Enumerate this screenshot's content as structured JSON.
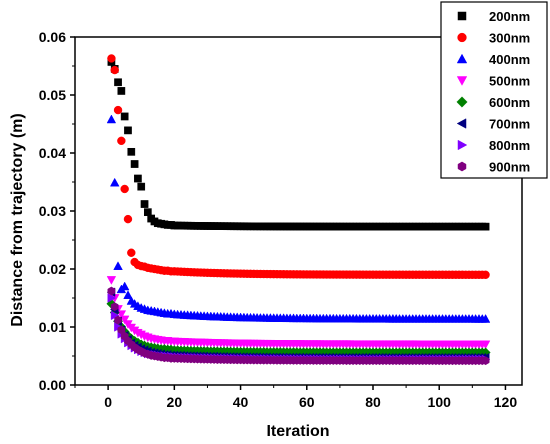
{
  "chart_data": {
    "type": "scatter",
    "title": "",
    "xlabel": "Iteration",
    "ylabel": "Distance from trajectory (m)",
    "xlim": [
      -10,
      125
    ],
    "ylim": [
      0,
      0.06
    ],
    "x_ticks": [
      0,
      20,
      40,
      60,
      80,
      100,
      120
    ],
    "y_ticks": [
      0.0,
      0.01,
      0.02,
      0.03,
      0.04,
      0.05,
      0.06
    ],
    "x_tick_labels": [
      "0",
      "20",
      "40",
      "60",
      "80",
      "100",
      "120"
    ],
    "y_tick_labels": [
      "0.00",
      "0.01",
      "0.02",
      "0.03",
      "0.04",
      "0.05",
      "0.06"
    ],
    "grid": false,
    "legend_position": "top-right",
    "x_range": [
      1,
      114
    ],
    "series": [
      {
        "name": "200nm",
        "color": "#000000",
        "marker": "square",
        "values": [
          0.0557,
          0.0545,
          0.0522,
          0.0507,
          0.0463,
          0.0439,
          0.0402,
          0.0381,
          0.0356,
          0.0342,
          0.0312,
          0.0298,
          0.0287,
          0.0282,
          0.0279,
          0.0278,
          0.0277,
          0.0276,
          0.0276,
          0.0275
        ],
        "plateau": 0.0273
      },
      {
        "name": "300nm",
        "color": "#ff0000",
        "marker": "circle",
        "values": [
          0.0563,
          0.0543,
          0.0474,
          0.0421,
          0.0338,
          0.0286,
          0.0228,
          0.0212,
          0.0207,
          0.0205,
          0.0204,
          0.0202,
          0.0201,
          0.02,
          0.0199,
          0.0198,
          0.0197,
          0.0197,
          0.0196,
          0.0196
        ],
        "plateau": 0.019
      },
      {
        "name": "400nm",
        "color": "#0000ff",
        "marker": "triangle-up",
        "values": [
          0.0458,
          0.0349,
          0.0205,
          0.0165,
          0.017,
          0.0155,
          0.0145,
          0.014,
          0.0136,
          0.0133,
          0.0131,
          0.0129,
          0.0128,
          0.0127,
          0.0126,
          0.0125,
          0.0124,
          0.0123,
          0.0123,
          0.0122
        ],
        "plateau": 0.0114
      },
      {
        "name": "500nm",
        "color": "#ff00ff",
        "marker": "triangle-down",
        "values": [
          0.0181,
          0.015,
          0.0131,
          0.0122,
          0.0113,
          0.0105,
          0.0099,
          0.0094,
          0.009,
          0.0087,
          0.0084,
          0.0082,
          0.008,
          0.0079,
          0.0078,
          0.0077,
          0.0076,
          0.0076,
          0.0075,
          0.0075
        ],
        "plateau": 0.007
      },
      {
        "name": "600nm",
        "color": "#008000",
        "marker": "diamond",
        "values": [
          0.014,
          0.0125,
          0.011,
          0.01,
          0.0092,
          0.0085,
          0.008,
          0.0076,
          0.0073,
          0.007,
          0.0068,
          0.0066,
          0.0065,
          0.0064,
          0.0063,
          0.0062,
          0.0062,
          0.0061,
          0.0061,
          0.006
        ],
        "plateau": 0.0056
      },
      {
        "name": "700nm",
        "color": "#000080",
        "marker": "triangle-left",
        "values": [
          0.016,
          0.013,
          0.011,
          0.0095,
          0.0085,
          0.0078,
          0.0072,
          0.0068,
          0.0065,
          0.0062,
          0.006,
          0.0058,
          0.0056,
          0.0055,
          0.0054,
          0.0053,
          0.0052,
          0.0052,
          0.0051,
          0.0051
        ],
        "plateau": 0.0047
      },
      {
        "name": "800nm",
        "color": "#8000ff",
        "marker": "triangle-right",
        "values": [
          0.015,
          0.012,
          0.01,
          0.0088,
          0.008,
          0.0073,
          0.0068,
          0.0064,
          0.0061,
          0.0058,
          0.0056,
          0.0054,
          0.0053,
          0.0052,
          0.0051,
          0.005,
          0.005,
          0.0049,
          0.0049,
          0.0048
        ],
        "plateau": 0.0044
      },
      {
        "name": "900nm",
        "color": "#800080",
        "marker": "hexagon",
        "values": [
          0.0162,
          0.0135,
          0.0112,
          0.0095,
          0.0084,
          0.0076,
          0.007,
          0.0065,
          0.0061,
          0.0058,
          0.0055,
          0.0053,
          0.0051,
          0.005,
          0.0049,
          0.0048,
          0.0047,
          0.0047,
          0.0046,
          0.0046
        ],
        "plateau": 0.0042
      }
    ]
  }
}
